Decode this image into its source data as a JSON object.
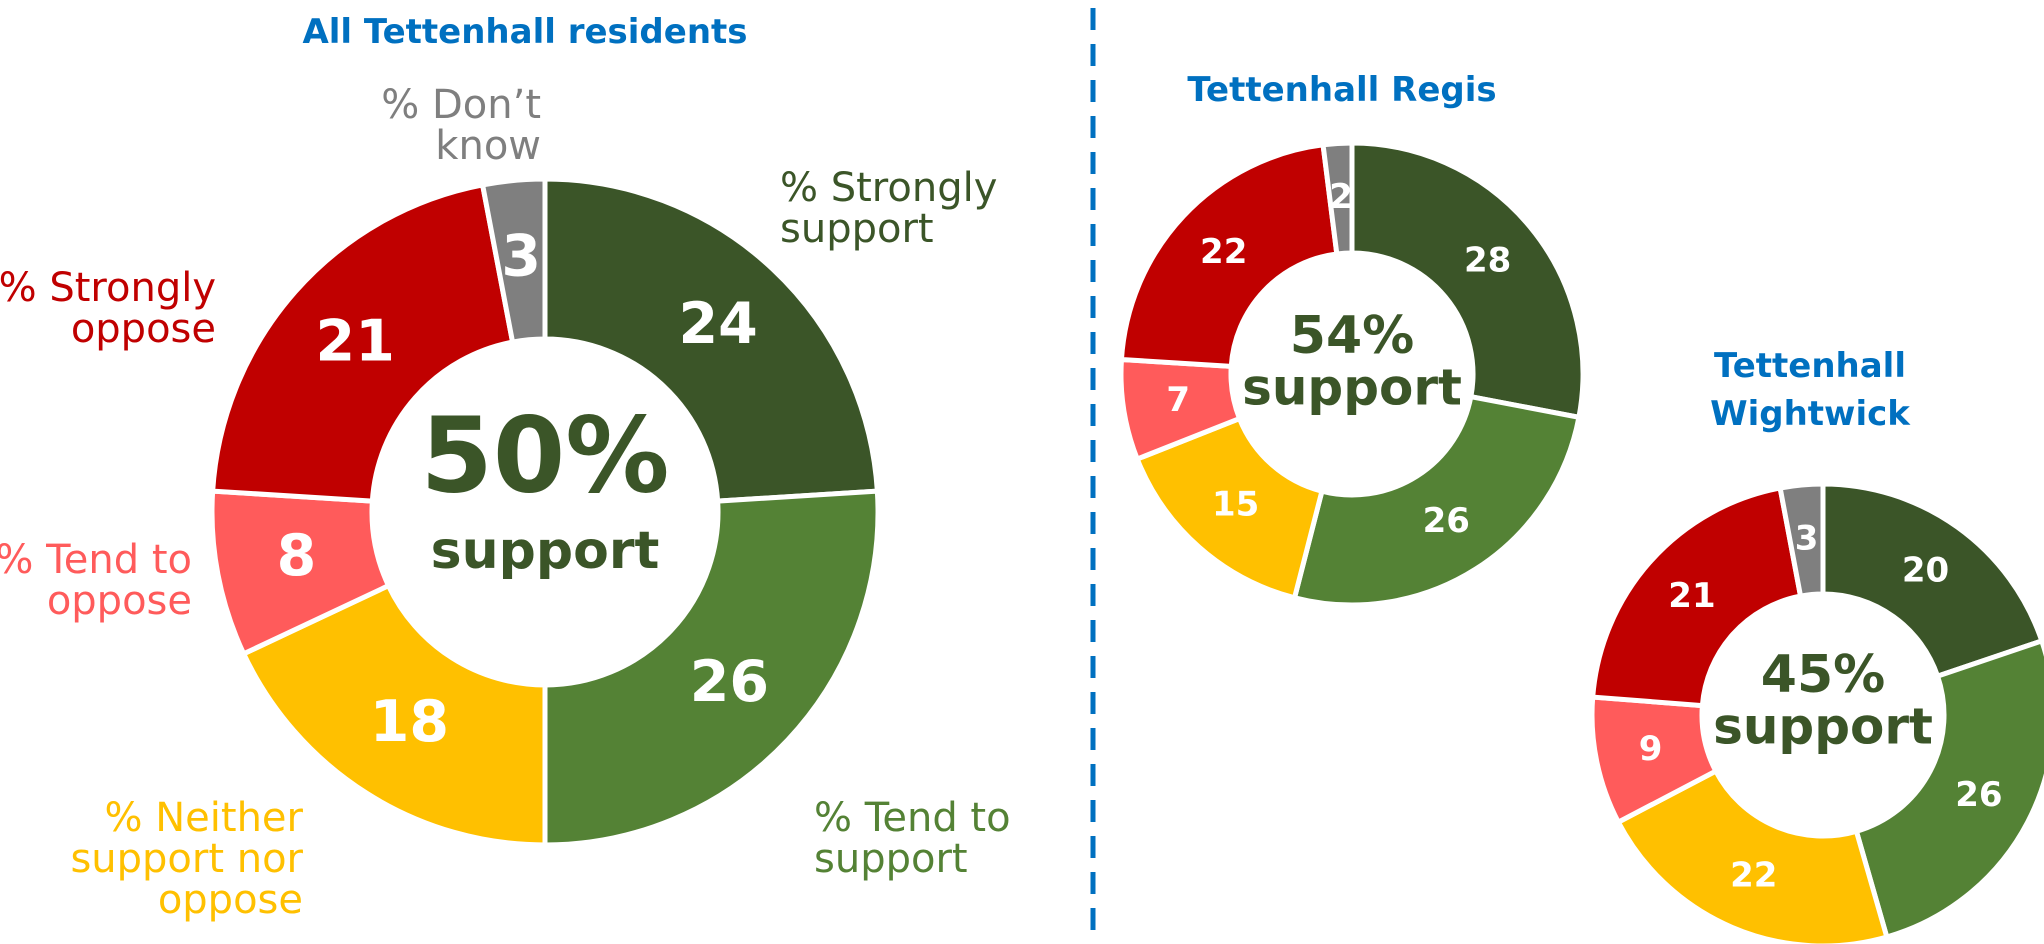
{
  "chart_data": [
    {
      "type": "donut",
      "title": "All Tettenhall residents",
      "categories": [
        "% Strongly support",
        "% Tend to support",
        "% Neither support nor oppose",
        "% Tend to oppose",
        "% Strongly oppose",
        "% Don’t know"
      ],
      "values": [
        24,
        26,
        18,
        8,
        21,
        3
      ],
      "colors": [
        "#3b5528",
        "#548235",
        "#ffc000",
        "#ff5b5b",
        "#c00000",
        "#7f7f7f"
      ],
      "center_text": [
        "50%",
        "support"
      ]
    },
    {
      "type": "donut",
      "title": "Tettenhall Regis",
      "values": [
        28,
        26,
        15,
        7,
        22,
        2
      ],
      "colors": [
        "#3b5528",
        "#548235",
        "#ffc000",
        "#ff5b5b",
        "#c00000",
        "#7f7f7f"
      ],
      "center_text": [
        "54%",
        "support"
      ]
    },
    {
      "type": "donut",
      "title": "Tettenhall Wightwick",
      "values": [
        20,
        26,
        22,
        9,
        21,
        3
      ],
      "colors": [
        "#3b5528",
        "#548235",
        "#ffc000",
        "#ff5b5b",
        "#c00000",
        "#7f7f7f"
      ],
      "center_text": [
        "45%",
        "support"
      ]
    }
  ]
}
